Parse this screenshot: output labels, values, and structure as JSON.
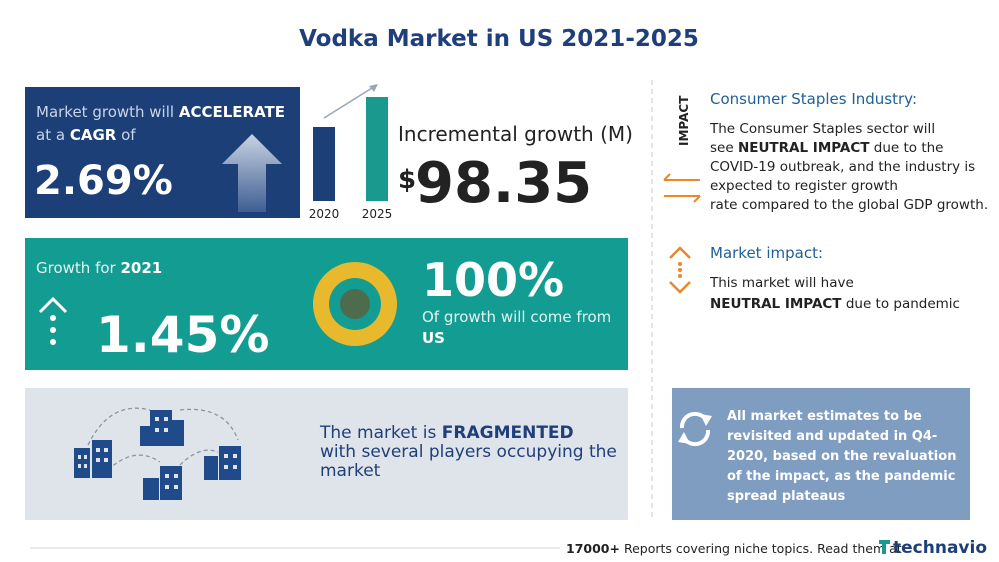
{
  "header": {
    "title": "Vodka Market in US 2021-2025"
  },
  "growth_panel": {
    "line1": "Market growth will",
    "line1_bold": "ACCELERATE",
    "line2_pre": "at a",
    "line2_bold": "CAGR",
    "line2_post": "of",
    "value": "2.69%"
  },
  "incremental": {
    "years": [
      "2020",
      "2025"
    ],
    "label": "Incremental growth (M)",
    "currency": "$",
    "value": "98.35"
  },
  "yoy_panel": {
    "label": "Growth for",
    "year": "2021",
    "value": "1.45%",
    "share": "100%",
    "share_text": "Of growth will come from",
    "region": "US"
  },
  "fragment_panel": {
    "line1": "The market is",
    "line1_bold": "FRAGMENTED",
    "line2": "with several players occupying the",
    "line3": "market"
  },
  "impact": {
    "tag": "IMPACT",
    "title": "Consumer Staples Industry:",
    "line1": "The Consumer Staples sector will",
    "line2_pre": "see",
    "line2_bold": "NEUTRAL IMPACT",
    "line2_post": "due to the",
    "line3": "COVID-19 outbreak, and the industry is",
    "line4": "expected to register  growth",
    "line5": "rate compared to the global GDP growth."
  },
  "market_impact": {
    "title": "Market impact:",
    "line1": "This market will have",
    "line2_bold": "NEUTRAL IMPACT",
    "line2_post": "due to pandemic"
  },
  "note": {
    "lines": [
      "All market estimates to be",
      "revisited and updated in Q4-",
      "2020, based on the revaluation",
      "of the impact, as the pandemic",
      "spread plateaus"
    ]
  },
  "footer": {
    "count": "17000+",
    "text": "Reports covering niche topics. Read them at",
    "brand": "technavio"
  }
}
